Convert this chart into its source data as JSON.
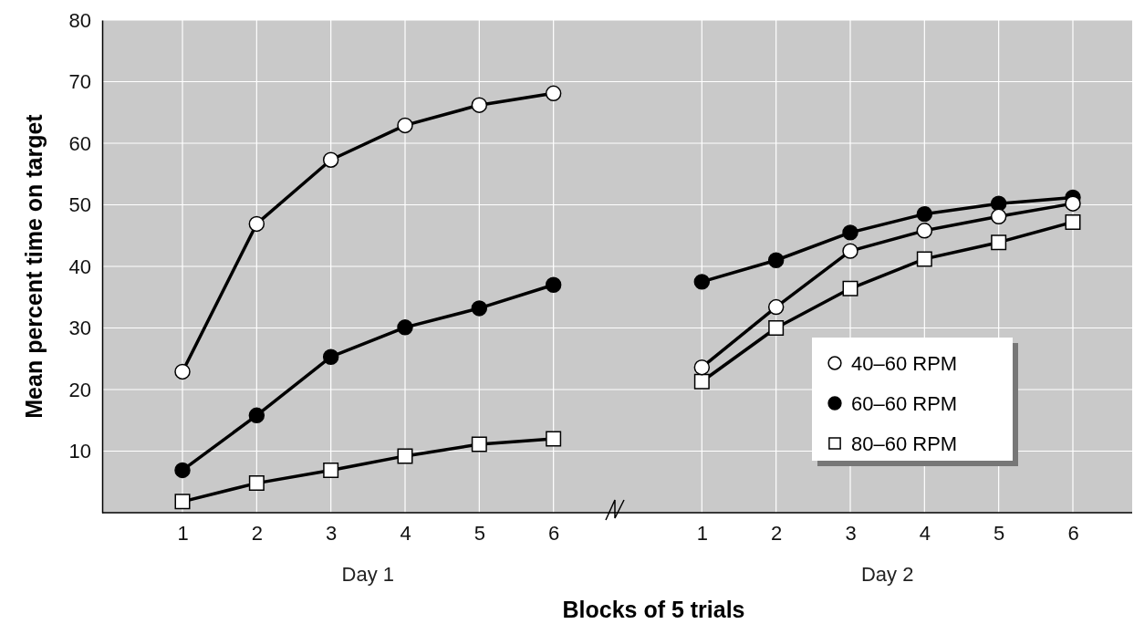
{
  "chart_data": {
    "type": "line",
    "xlabel": "Blocks of 5 trials",
    "ylabel": "Mean percent time on target",
    "categories": [
      "1",
      "2",
      "3",
      "4",
      "5",
      "6",
      null,
      "1",
      "2",
      "3",
      "4",
      "5",
      "6"
    ],
    "ylim": [
      0,
      80
    ],
    "yticks": [
      10,
      20,
      30,
      40,
      50,
      60,
      70,
      80
    ],
    "grid": true,
    "legend": "bottom right",
    "line_style": "solid",
    "annotations": [
      "Day 1",
      "Day 2"
    ],
    "series": [
      {
        "name": "40–60 RPM",
        "color": "#ffffff",
        "marker": "circle",
        "values": [
          22.9,
          46.9,
          57.3,
          62.9,
          66.2,
          68.1,
          null,
          23.6,
          33.4,
          42.5,
          45.8,
          48.1,
          50.2
        ]
      },
      {
        "name": "60–60 RPM",
        "color": "#000000",
        "marker": "circle",
        "values": [
          6.9,
          15.8,
          25.3,
          30.1,
          33.2,
          37.0,
          null,
          37.5,
          41.0,
          45.5,
          48.5,
          50.2,
          51.2
        ]
      },
      {
        "name": "80–60 RPM",
        "color": "#ffffff",
        "marker": "square",
        "values": [
          1.8,
          4.8,
          6.9,
          9.2,
          11.1,
          12.0,
          null,
          21.3,
          30.0,
          36.4,
          41.2,
          43.9,
          47.2
        ]
      }
    ]
  }
}
